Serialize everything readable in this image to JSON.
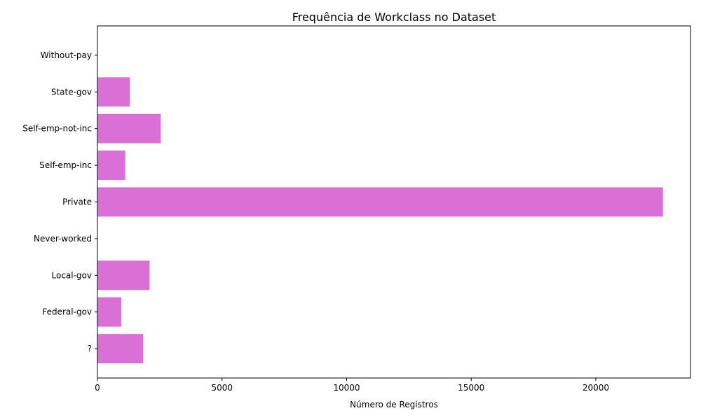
{
  "chart_data": {
    "type": "bar",
    "orientation": "horizontal",
    "title": "Frequência de Workclass no Dataset",
    "xlabel": "Número de Registros",
    "ylabel": "",
    "categories": [
      "?",
      "Federal-gov",
      "Local-gov",
      "Never-worked",
      "Private",
      "Self-emp-inc",
      "Self-emp-not-inc",
      "State-gov",
      "Without-pay"
    ],
    "values": [
      1836,
      960,
      2093,
      7,
      22696,
      1116,
      2541,
      1298,
      14
    ],
    "xlim": [
      0,
      23800
    ],
    "xticks": [
      0,
      5000,
      10000,
      15000,
      20000
    ],
    "xtick_labels": [
      "0",
      "5000",
      "10000",
      "15000",
      "20000"
    ],
    "grid": false,
    "bar_color": "#da70d6"
  }
}
